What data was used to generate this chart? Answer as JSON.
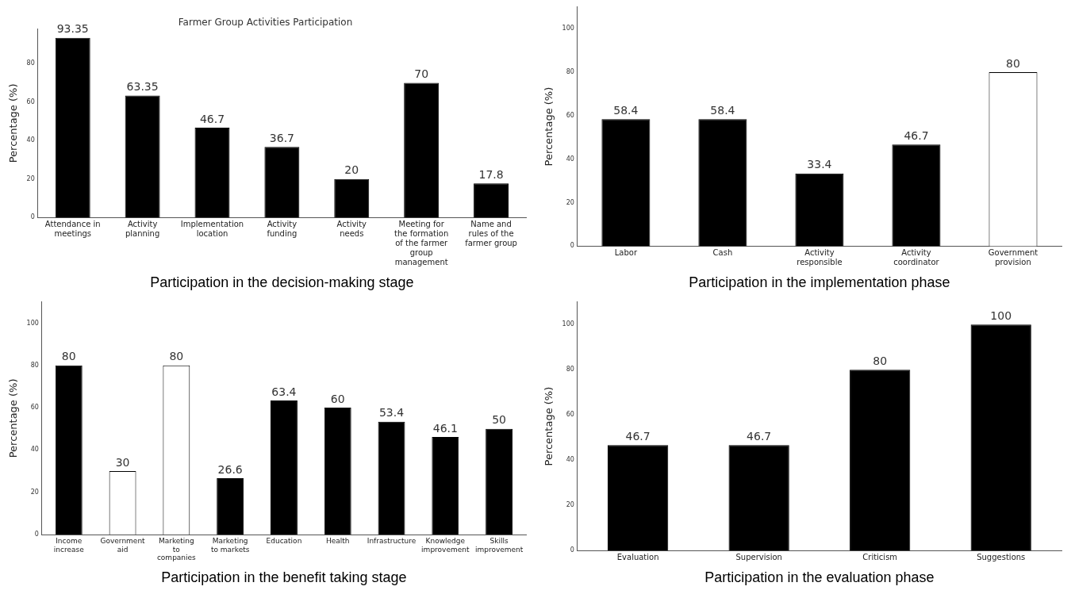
{
  "chart_data": [
    {
      "type": "bar",
      "title": "Farmer Group Activities Participation",
      "xlabel": "Participation in the decision-making stage",
      "ylabel": "Percentage (%)",
      "categories": [
        "Attendance in meetings",
        "Activity planning",
        "Implementation location",
        "Activity funding",
        "Activity needs",
        "Meeting for the formation of the farmer group management",
        "Name and rules of the farmer group"
      ],
      "values": [
        93.35,
        63.35,
        46.7,
        36.7,
        20,
        70,
        17.8
      ],
      "colors": [
        "#000000",
        "#000000",
        "#000000",
        "#000000",
        "#000000",
        "#000000",
        "#000000"
      ],
      "ylim": [
        0,
        98
      ],
      "yticks": [
        0,
        20,
        40,
        60,
        80
      ],
      "data_labels": true
    },
    {
      "type": "bar",
      "xlabel": "Participation in the implementation phase",
      "ylabel": "Percentage (%)",
      "categories": [
        "Labor",
        "Cash",
        "Activity responsible",
        "Activity coordinator",
        "Government provision"
      ],
      "values": [
        58.4,
        58.4,
        33.4,
        46.7,
        80
      ],
      "colors": [
        "#000000",
        "#000000",
        "#000000",
        "#000000",
        "#ffffff"
      ],
      "ylim": [
        0,
        110
      ],
      "yticks": [
        0,
        20,
        40,
        60,
        80,
        100
      ],
      "data_labels": true
    },
    {
      "type": "bar",
      "xlabel": "Participation in the benefit taking stage",
      "ylabel": "Percentage (%)",
      "categories": [
        "Income increase",
        "Government aid",
        "Marketing to companies",
        "Marketing to markets",
        "Education",
        "Health",
        "Infrastructure",
        "Knowledge improvement",
        "Skills improvement"
      ],
      "values": [
        80,
        30,
        80,
        26.6,
        63.4,
        60,
        53.4,
        46.1,
        50
      ],
      "colors": [
        "#000000",
        "#ffffff",
        "#ffffff",
        "#000000",
        "#000000",
        "#000000",
        "#000000",
        "#000000",
        "#000000"
      ],
      "ylim": [
        0,
        110
      ],
      "yticks": [
        0,
        20,
        40,
        60,
        80,
        100
      ],
      "data_labels": true
    },
    {
      "type": "bar",
      "xlabel": "Participation in the evaluation phase",
      "ylabel": "Percentage (%)",
      "categories": [
        "Evaluation",
        "Supervision",
        "Criticism",
        "Suggestions"
      ],
      "values": [
        46.7,
        46.7,
        80,
        100
      ],
      "colors": [
        "#000000",
        "#000000",
        "#000000",
        "#000000"
      ],
      "ylim": [
        0,
        110
      ],
      "yticks": [
        0,
        20,
        40,
        60,
        80,
        100
      ],
      "data_labels": true
    }
  ]
}
